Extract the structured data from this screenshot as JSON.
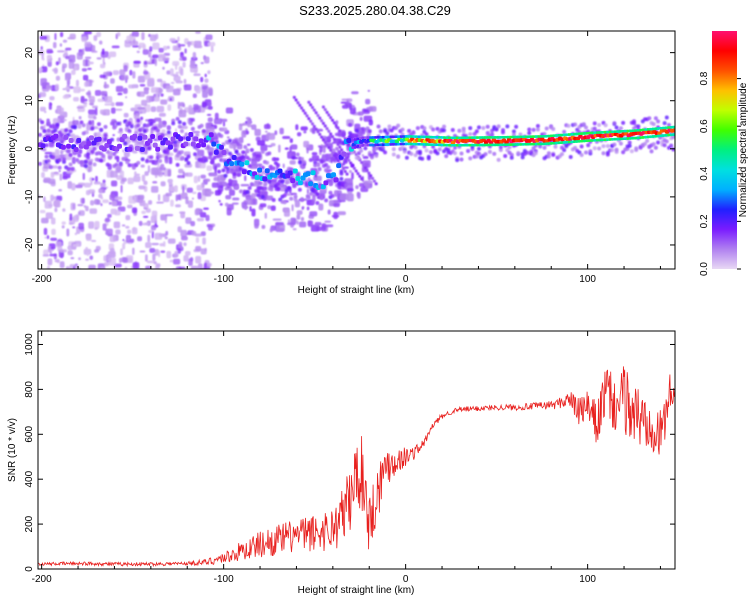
{
  "title": "S233.2025.280.04.38.C29",
  "chart_data": [
    {
      "type": "heatmap",
      "name": "spectrogram",
      "xlabel": "Height of straight line (km)",
      "ylabel": "Frequency (Hz)",
      "xlim": [
        -202,
        148
      ],
      "ylim": [
        -25,
        24.5
      ],
      "xticks": [
        -200,
        -100,
        0,
        100
      ],
      "xtick_labels": [
        "-200",
        "-100",
        "0",
        "100"
      ],
      "yticks": [
        -20,
        -10,
        0,
        10,
        20
      ],
      "ytick_labels": [
        "-20",
        "-10",
        "0",
        "10",
        "20"
      ],
      "dominant_frequency_track": [
        {
          "x": -200,
          "y": 1.5
        },
        {
          "x": -180,
          "y": 1.0
        },
        {
          "x": -160,
          "y": 1.5
        },
        {
          "x": -140,
          "y": 1.2
        },
        {
          "x": -120,
          "y": 2.0
        },
        {
          "x": -110,
          "y": 2.2
        },
        {
          "x": -100,
          "y": -1.5
        },
        {
          "x": -90,
          "y": -4.0
        },
        {
          "x": -80,
          "y": -5.0
        },
        {
          "x": -70,
          "y": -6.0
        },
        {
          "x": -60,
          "y": -5.5
        },
        {
          "x": -50,
          "y": -6.5
        },
        {
          "x": -40,
          "y": -6.0
        },
        {
          "x": -35,
          "y": 0.5
        },
        {
          "x": -25,
          "y": 1.5
        },
        {
          "x": 0,
          "y": 1.8
        },
        {
          "x": 25,
          "y": 1.5
        },
        {
          "x": 50,
          "y": 1.6
        },
        {
          "x": 75,
          "y": 1.8
        },
        {
          "x": 100,
          "y": 2.5
        },
        {
          "x": 125,
          "y": 3.0
        },
        {
          "x": 148,
          "y": 3.8
        }
      ],
      "colorbar": {
        "label": "Normalized spectral amplitude",
        "range": [
          0,
          1
        ],
        "ticks": [
          0.0,
          0.2,
          0.4,
          0.6,
          0.8
        ],
        "tick_labels": [
          "0.0",
          "0.2",
          "0.4",
          "0.6",
          "0.8"
        ],
        "colors": [
          "#e8d8f4",
          "#b080f0",
          "#7a1cff",
          "#2020ff",
          "#00b0ff",
          "#00e0e0",
          "#00f080",
          "#40ff00",
          "#c0ff00",
          "#ffc000",
          "#ff5000",
          "#ff0000",
          "#ff1070"
        ]
      }
    },
    {
      "type": "line",
      "name": "snr",
      "xlabel": "Height of straight line (km)",
      "ylabel": "SNR (10 * v/v)",
      "xlim": [
        -202,
        148
      ],
      "ylim": [
        0,
        1060
      ],
      "xticks": [
        -200,
        -100,
        0,
        100
      ],
      "xtick_labels": [
        "-200",
        "-100",
        "0",
        "100"
      ],
      "yticks": [
        0,
        200,
        400,
        600,
        800,
        1000
      ],
      "ytick_labels": [
        "0",
        "200",
        "400",
        "600",
        "800",
        "1000"
      ],
      "series": [
        {
          "name": "SNR",
          "color": "#e8201e",
          "x": [
            -202,
            -180,
            -160,
            -140,
            -120,
            -110,
            -100,
            -90,
            -80,
            -70,
            -60,
            -50,
            -40,
            -35,
            -30,
            -27,
            -25,
            -22,
            -20,
            -15,
            -10,
            -5,
            0,
            5,
            10,
            15,
            20,
            25,
            30,
            40,
            50,
            60,
            70,
            80,
            85,
            90,
            95,
            100,
            105,
            110,
            115,
            120,
            125,
            130,
            135,
            140,
            145,
            148
          ],
          "y": [
            22,
            25,
            22,
            22,
            25,
            30,
            50,
            80,
            110,
            130,
            150,
            160,
            180,
            230,
            320,
            420,
            450,
            350,
            200,
            360,
            470,
            480,
            500,
            520,
            560,
            640,
            680,
            700,
            710,
            715,
            720,
            720,
            725,
            730,
            740,
            760,
            700,
            720,
            640,
            800,
            720,
            760,
            700,
            660,
            680,
            580,
            780,
            800
          ],
          "noise_envelope": [
            6,
            8,
            8,
            8,
            8,
            14,
            25,
            45,
            60,
            70,
            75,
            85,
            100,
            130,
            170,
            180,
            180,
            150,
            150,
            130,
            100,
            60,
            45,
            30,
            20,
            15,
            12,
            12,
            12,
            12,
            12,
            14,
            15,
            20,
            25,
            40,
            60,
            80,
            100,
            120,
            130,
            150,
            160,
            150,
            140,
            130,
            90,
            60
          ]
        }
      ]
    }
  ]
}
